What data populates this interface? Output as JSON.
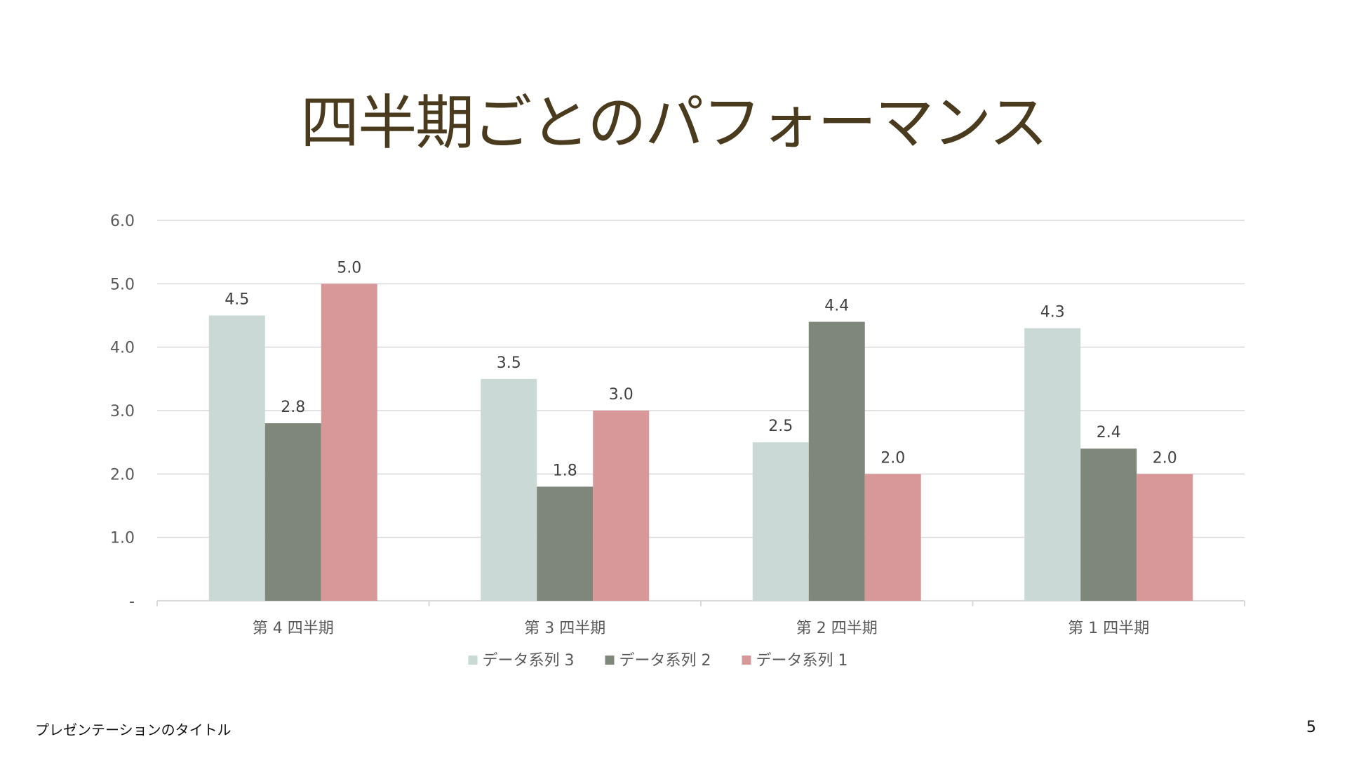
{
  "slide": {
    "title": "四半期ごとのパフォーマンス",
    "footer_text": "プレゼンテーションのタイトル",
    "page_number": "5"
  },
  "chart_data": {
    "type": "bar",
    "categories": [
      "第 4 四半期",
      "第 3 四半期",
      "第 2 四半期",
      "第 1 四半期"
    ],
    "series": [
      {
        "name": "データ系列 3",
        "values": [
          4.5,
          3.5,
          2.5,
          4.3
        ],
        "color": "#cad9d6"
      },
      {
        "name": "データ系列 2",
        "values": [
          2.8,
          1.8,
          4.4,
          2.4
        ],
        "color": "#7f877a"
      },
      {
        "name": "データ系列 1",
        "values": [
          5.0,
          3.0,
          2.0,
          2.0
        ],
        "color": "#d89798"
      }
    ],
    "y_ticks": [
      "-",
      "1.0",
      "2.0",
      "3.0",
      "4.0",
      "5.0",
      "6.0"
    ],
    "ylim": [
      0,
      6
    ],
    "data_labels": true,
    "grid": true,
    "legend_position": "bottom",
    "xlabel": "",
    "ylabel": ""
  }
}
